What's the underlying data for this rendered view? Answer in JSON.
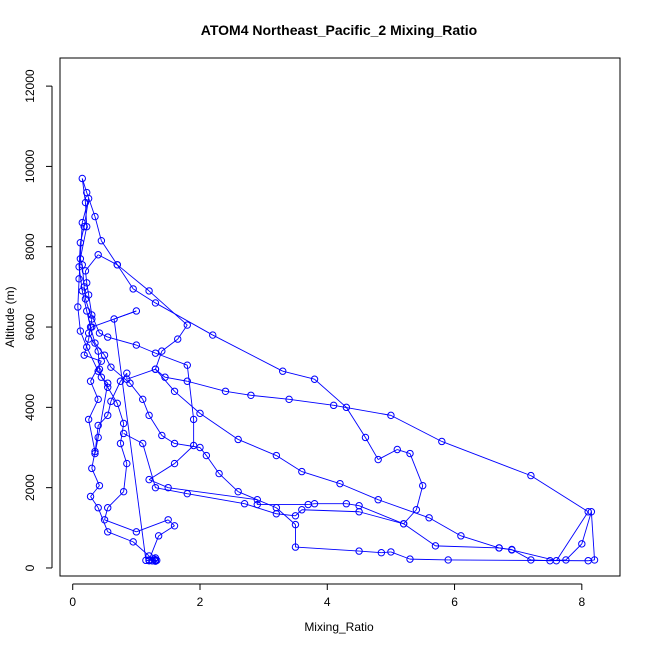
{
  "chart_data": {
    "type": "line",
    "title": "ATOM4 Northeast_Pacific_2 Mixing_Ratio",
    "xlabel": "Mixing_Ratio",
    "ylabel": "Altitude (m)",
    "xlim": [
      -0.2,
      8.6
    ],
    "ylim": [
      -200,
      12700
    ],
    "x_ticks": [
      0,
      2,
      4,
      6,
      8
    ],
    "y_ticks": [
      0,
      2000,
      4000,
      6000,
      8000,
      10000,
      12000
    ],
    "grid": false,
    "marker": "open-circle",
    "colors": {
      "series": "#0000ff",
      "axes": "#000000",
      "background": "#ffffff"
    },
    "series": [
      {
        "points": [
          [
            1.3,
            200
          ],
          [
            1.25,
            180
          ],
          [
            1.2,
            300
          ],
          [
            0.95,
            650
          ],
          [
            0.55,
            900
          ],
          [
            0.4,
            1500
          ],
          [
            0.28,
            1780
          ],
          [
            0.42,
            2050
          ],
          [
            0.3,
            2480
          ],
          [
            0.35,
            2900
          ],
          [
            0.25,
            3700
          ],
          [
            0.4,
            4200
          ],
          [
            0.28,
            4650
          ],
          [
            0.45,
            5150
          ],
          [
            0.18,
            5300
          ],
          [
            0.25,
            5700
          ],
          [
            0.3,
            6200
          ],
          [
            0.2,
            6700
          ],
          [
            0.18,
            7000
          ],
          [
            0.15,
            7550
          ],
          [
            0.12,
            7700
          ],
          [
            0.22,
            8500
          ],
          [
            0.2,
            9100
          ],
          [
            0.15,
            9700
          ],
          [
            0.22,
            9350
          ],
          [
            0.35,
            8750
          ],
          [
            0.45,
            8150
          ],
          [
            0.7,
            7550
          ],
          [
            1.2,
            6900
          ],
          [
            1.8,
            6050
          ],
          [
            1.65,
            5700
          ],
          [
            1.4,
            5400
          ],
          [
            1.3,
            4950
          ],
          [
            1.6,
            4400
          ],
          [
            2.0,
            3850
          ],
          [
            2.6,
            3200
          ],
          [
            3.2,
            2800
          ],
          [
            3.6,
            2400
          ],
          [
            4.2,
            2100
          ],
          [
            4.8,
            1700
          ],
          [
            5.6,
            1250
          ],
          [
            6.1,
            800
          ],
          [
            6.7,
            500
          ],
          [
            6.9,
            460
          ],
          [
            7.2,
            200
          ],
          [
            7.5,
            180
          ],
          [
            7.75,
            200
          ],
          [
            8.0,
            600
          ],
          [
            8.15,
            1400
          ],
          [
            8.2,
            200
          ],
          [
            8.1,
            180
          ],
          [
            5.9,
            200
          ],
          [
            5.3,
            220
          ],
          [
            5.0,
            400
          ],
          [
            4.85,
            380
          ],
          [
            4.5,
            420
          ],
          [
            3.5,
            520
          ],
          [
            3.5,
            1080
          ],
          [
            3.2,
            1500
          ],
          [
            2.6,
            1900
          ],
          [
            2.3,
            2350
          ],
          [
            2.1,
            2800
          ],
          [
            2.0,
            3000
          ],
          [
            1.6,
            3100
          ],
          [
            1.4,
            3300
          ],
          [
            1.2,
            3800
          ],
          [
            1.1,
            4200
          ],
          [
            0.9,
            4600
          ],
          [
            0.6,
            5000
          ],
          [
            0.5,
            5300
          ],
          [
            0.35,
            5600
          ],
          [
            0.28,
            6000
          ],
          [
            0.22,
            6400
          ],
          [
            0.15,
            6900
          ],
          [
            0.1,
            7500
          ],
          [
            0.12,
            8100
          ],
          [
            0.18,
            8500
          ],
          [
            0.25,
            9200
          ],
          [
            0.15,
            8600
          ],
          [
            0.1,
            7200
          ],
          [
            0.08,
            6500
          ],
          [
            0.12,
            5900
          ],
          [
            0.22,
            5500
          ],
          [
            0.4,
            4900
          ],
          [
            0.55,
            4500
          ],
          [
            0.7,
            4100
          ],
          [
            0.8,
            3600
          ],
          [
            0.75,
            3100
          ],
          [
            0.85,
            2600
          ],
          [
            0.8,
            1900
          ],
          [
            0.55,
            1500
          ],
          [
            0.5,
            1200
          ],
          [
            1.0,
            900
          ],
          [
            1.5,
            1200
          ],
          [
            1.6,
            1050
          ],
          [
            1.35,
            800
          ],
          [
            1.2,
            200
          ],
          [
            1.28,
            220
          ],
          [
            1.3,
            250
          ],
          [
            1.25,
            180
          ],
          [
            1.3,
            170
          ],
          [
            1.32,
            190
          ],
          [
            1.3,
            180
          ],
          [
            1.2,
            180
          ],
          [
            1.15,
            190
          ],
          [
            0.65,
            6200
          ],
          [
            1.0,
            6400
          ],
          [
            0.3,
            6000
          ],
          [
            0.25,
            5850
          ],
          [
            0.4,
            5400
          ],
          [
            0.42,
            4950
          ],
          [
            0.45,
            4750
          ],
          [
            0.55,
            4600
          ],
          [
            0.4,
            3250
          ],
          [
            0.35,
            2850
          ],
          [
            0.4,
            3550
          ],
          [
            0.55,
            3800
          ],
          [
            0.6,
            4150
          ],
          [
            0.75,
            4650
          ],
          [
            0.85,
            4850
          ],
          [
            0.85,
            4700
          ],
          [
            1.3,
            4950
          ],
          [
            1.45,
            4750
          ],
          [
            1.8,
            4650
          ],
          [
            2.4,
            4400
          ],
          [
            2.8,
            4300
          ],
          [
            3.4,
            4200
          ],
          [
            4.1,
            4050
          ],
          [
            5.0,
            3800
          ],
          [
            5.8,
            3150
          ],
          [
            7.2,
            2300
          ],
          [
            8.1,
            1400
          ],
          [
            7.6,
            180
          ],
          [
            6.9,
            450
          ],
          [
            6.7,
            500
          ],
          [
            5.7,
            550
          ],
          [
            5.2,
            1100
          ],
          [
            4.5,
            1550
          ],
          [
            4.3,
            1600
          ],
          [
            3.8,
            1600
          ],
          [
            3.7,
            1580
          ],
          [
            2.9,
            1580
          ],
          [
            2.9,
            1700
          ],
          [
            1.5,
            2000
          ],
          [
            1.2,
            2200
          ],
          [
            1.6,
            2600
          ],
          [
            1.9,
            3050
          ],
          [
            1.9,
            3700
          ],
          [
            1.8,
            5050
          ],
          [
            1.3,
            5350
          ],
          [
            1.0,
            5550
          ],
          [
            0.55,
            5750
          ],
          [
            0.42,
            5850
          ],
          [
            0.3,
            6300
          ],
          [
            0.25,
            6800
          ],
          [
            0.22,
            7100
          ],
          [
            0.2,
            7400
          ],
          [
            0.4,
            7800
          ],
          [
            0.7,
            7550
          ],
          [
            0.95,
            6950
          ],
          [
            1.3,
            6600
          ],
          [
            2.2,
            5800
          ],
          [
            3.3,
            4900
          ],
          [
            3.8,
            4700
          ],
          [
            4.3,
            4000
          ],
          [
            4.6,
            3250
          ],
          [
            4.8,
            2700
          ],
          [
            5.1,
            2950
          ],
          [
            5.3,
            2850
          ],
          [
            5.5,
            2050
          ],
          [
            5.4,
            1450
          ],
          [
            5.2,
            1100
          ],
          [
            4.5,
            1400
          ],
          [
            3.6,
            1450
          ],
          [
            3.5,
            1300
          ],
          [
            3.2,
            1350
          ],
          [
            2.7,
            1600
          ],
          [
            1.8,
            1850
          ],
          [
            1.3,
            2000
          ],
          [
            1.1,
            3100
          ],
          [
            0.8,
            3350
          ]
        ]
      }
    ]
  }
}
